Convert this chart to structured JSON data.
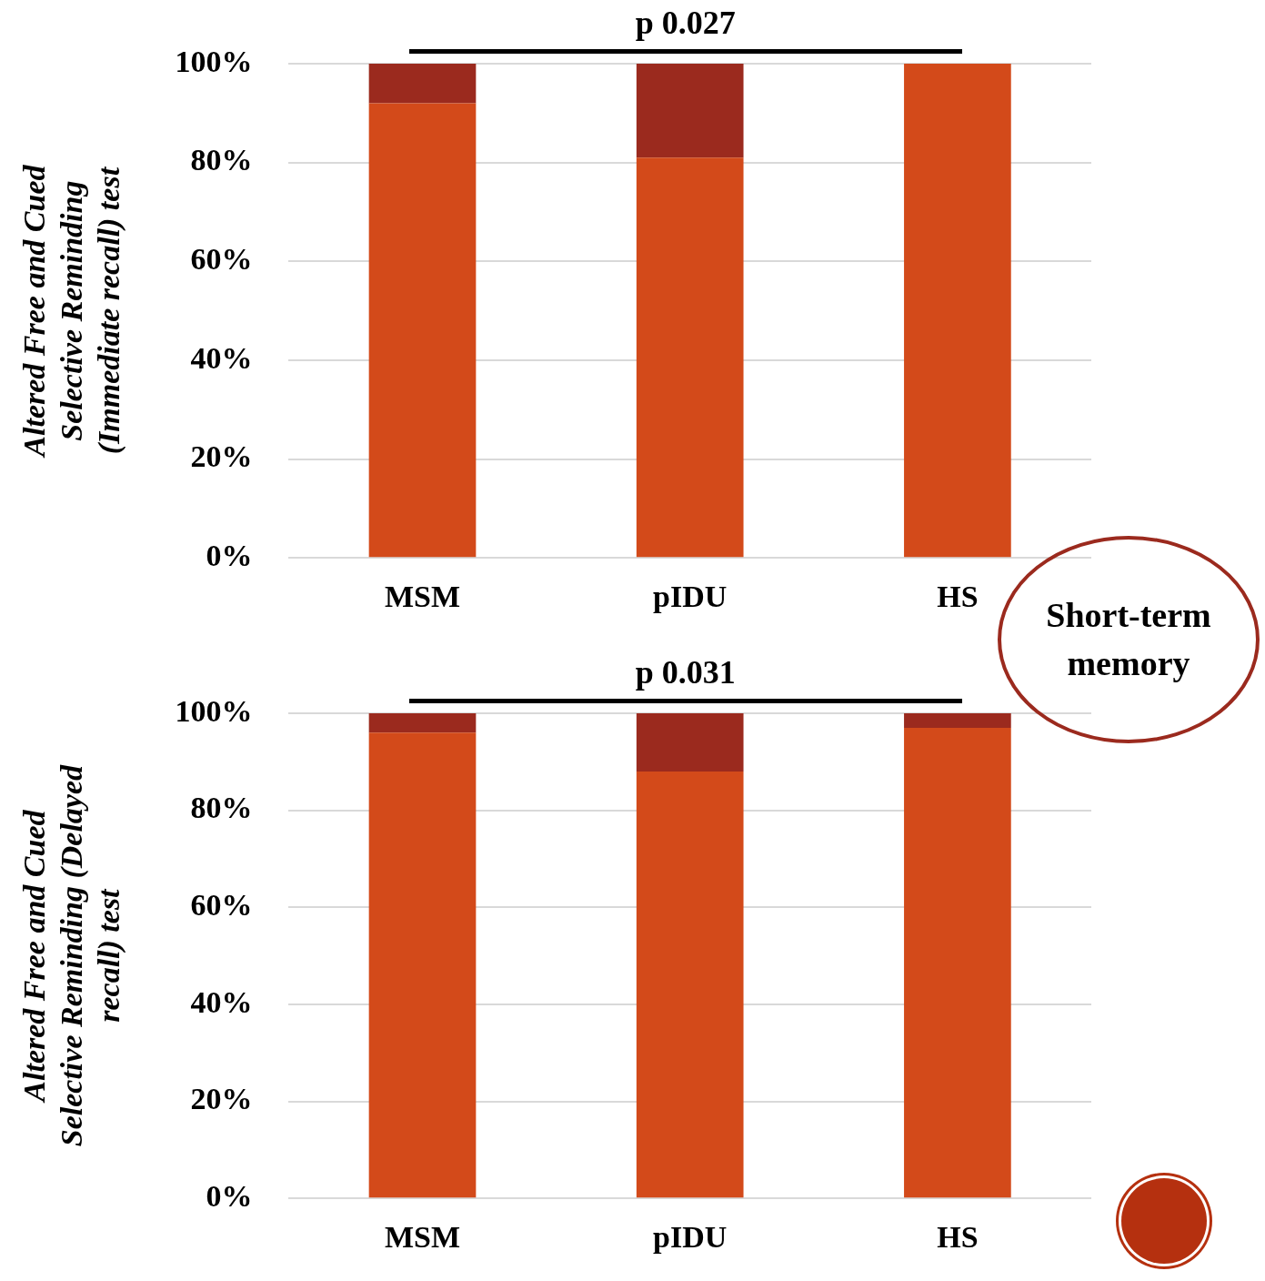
{
  "chart_data": [
    {
      "type": "bar",
      "stacked": true,
      "categories": [
        "MSM",
        "pIDU",
        "HS"
      ],
      "series": [
        {
          "color": "#d34a1a",
          "values": [
            92,
            81,
            100
          ]
        },
        {
          "color": "#9b2a1e",
          "values": [
            8,
            19,
            0
          ]
        }
      ],
      "ylabel": "Altered Free and Cued Selective Reminding (Immediate recall) test",
      "ylim": [
        0,
        100
      ],
      "yticks": [
        {
          "value": 0,
          "label": "0%"
        },
        {
          "value": 20,
          "label": "20%"
        },
        {
          "value": 40,
          "label": "40%"
        },
        {
          "value": 60,
          "label": "60%"
        },
        {
          "value": 80,
          "label": "80%"
        },
        {
          "value": 100,
          "label": "100%"
        }
      ],
      "grid": "y",
      "legend": false,
      "annotations": [
        "p 0.027",
        "Short-term memory"
      ]
    },
    {
      "type": "bar",
      "stacked": true,
      "categories": [
        "MSM",
        "pIDU",
        "HS"
      ],
      "series": [
        {
          "color": "#d34a1a",
          "values": [
            96,
            88,
            97
          ]
        },
        {
          "color": "#9b2a1e",
          "values": [
            4,
            12,
            3
          ]
        }
      ],
      "ylabel": "Altered Free and Cued Selective Reminding (Delayed recall) test",
      "ylim": [
        0,
        100
      ],
      "yticks": [
        {
          "value": 0,
          "label": "0%"
        },
        {
          "value": 20,
          "label": "20%"
        },
        {
          "value": 40,
          "label": "40%"
        },
        {
          "value": 60,
          "label": "60%"
        },
        {
          "value": 80,
          "label": "80%"
        },
        {
          "value": 100,
          "label": "100%"
        }
      ],
      "grid": "y",
      "legend": false,
      "annotations": [
        "p 0.031"
      ]
    }
  ]
}
